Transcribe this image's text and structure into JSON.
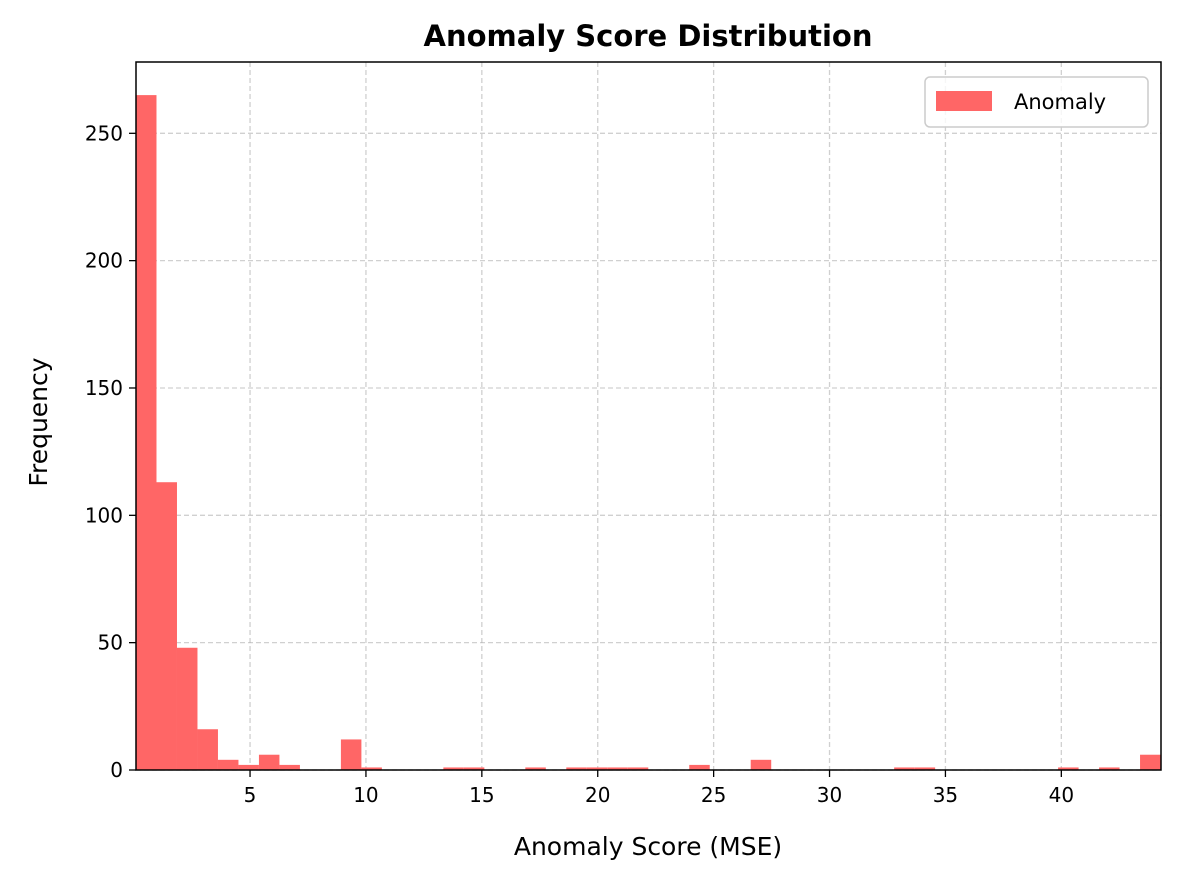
{
  "chart_data": {
    "type": "bar",
    "title": "Anomaly Score Distribution",
    "xlabel": "Anomaly Score (MSE)",
    "ylabel": "Frequency",
    "xlim": [
      0.08,
      44.3
    ],
    "ylim": [
      0,
      278
    ],
    "x_ticks": [
      5,
      10,
      15,
      20,
      25,
      30,
      35,
      40
    ],
    "y_ticks": [
      0,
      50,
      100,
      150,
      200,
      250
    ],
    "grid": true,
    "legend_position": "top-right",
    "series": [
      {
        "name": "Anomaly",
        "color": "#ff6666",
        "bin_width": 0.884,
        "bin_start": 0.08,
        "counts": [
          265,
          113,
          48,
          16,
          4,
          2,
          6,
          2,
          0,
          0,
          12,
          1,
          0,
          0,
          0,
          1,
          1,
          0,
          0,
          1,
          0,
          1,
          1,
          1,
          1,
          0,
          0,
          2,
          0,
          0,
          4,
          0,
          0,
          0,
          0,
          0,
          0,
          1,
          1,
          0,
          0,
          0,
          0,
          0,
          0,
          1,
          0,
          1,
          0,
          6
        ]
      }
    ]
  }
}
